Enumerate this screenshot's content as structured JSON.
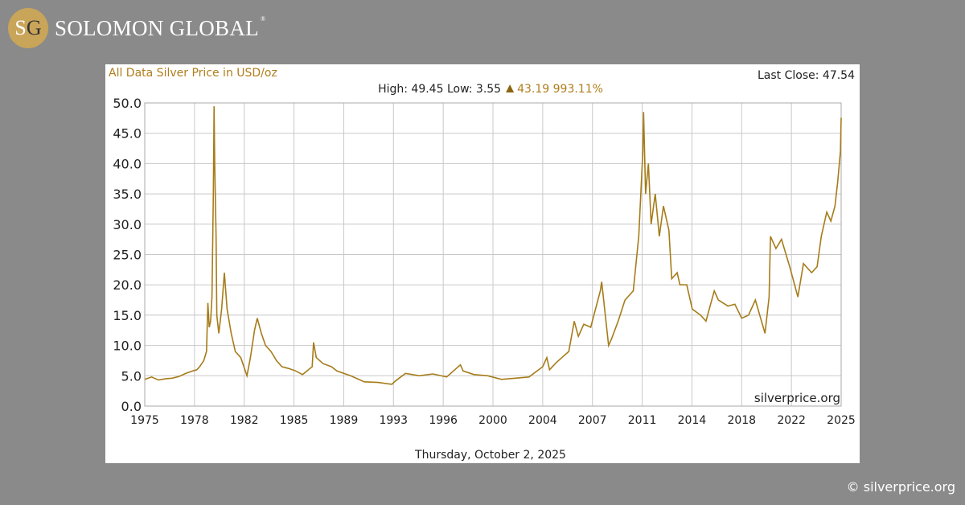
{
  "brand": {
    "monogram_s": "S",
    "monogram_g": "G",
    "name": "SOLOMON GLOBAL",
    "registered": "®"
  },
  "credit": "© silverprice.org",
  "colors": {
    "line": "#a67c1a",
    "title": "#b07d1a",
    "background": "#8a8a8a",
    "grid": "#c8c8c8"
  },
  "chart_data": {
    "type": "line",
    "title": "All Data Silver Price in USD/oz",
    "last_close": "Last Close: 47.54",
    "stats_prefix": "High: 49.45 Low: 3.55",
    "change_icon": "triangle-up",
    "change": "43.19 993.11%",
    "watermark": "silverprice.org",
    "xlabel": "Thursday, October 2, 2025",
    "ylabel": "",
    "xlim": [
      1975,
      2025.75
    ],
    "ylim": [
      0,
      50
    ],
    "grid": true,
    "yticks": [
      "0.0",
      "5.0",
      "10.0",
      "15.0",
      "20.0",
      "25.0",
      "30.0",
      "35.0",
      "40.0",
      "45.0",
      "50.0"
    ],
    "xticks": [
      "1975",
      "1978",
      "1982",
      "1985",
      "1989",
      "1993",
      "1996",
      "2000",
      "2004",
      "2007",
      "2011",
      "2014",
      "2018",
      "2022",
      "2025"
    ],
    "series": [
      {
        "x": [
          1975,
          1975.5,
          1976,
          1976.5,
          1977,
          1977.5,
          1978,
          1978.5,
          1978.8,
          1979,
          1979.3,
          1979.5,
          1979.6,
          1979.7,
          1979.8,
          1979.9,
          1980.0,
          1980.05,
          1980.1,
          1980.2,
          1980.25,
          1980.4,
          1980.6,
          1980.8,
          1981,
          1981.3,
          1981.6,
          1982,
          1982.45,
          1982.7,
          1983,
          1983.2,
          1983.5,
          1983.8,
          1984.2,
          1984.6,
          1985,
          1985.5,
          1986,
          1986.5,
          1987.2,
          1987.3,
          1987.5,
          1988,
          1988.6,
          1989,
          1990,
          1991,
          1992,
          1993.0,
          1993.3,
          1994,
          1995,
          1996,
          1997,
          1998.0,
          1998.2,
          1999,
          2000,
          2001,
          2002,
          2003,
          2004,
          2004.3,
          2004.5,
          2005,
          2005.9,
          2006.3,
          2006.6,
          2007,
          2007.5,
          2008.2,
          2008.3,
          2008.8,
          2009,
          2009.5,
          2010,
          2010.6,
          2011,
          2011.3,
          2011.35,
          2011.5,
          2011.7,
          2011.9,
          2012.2,
          2012.5,
          2012.8,
          2013.2,
          2013.4,
          2013.8,
          2014,
          2014.5,
          2014.9,
          2015.5,
          2015.9,
          2016.5,
          2016.8,
          2017.5,
          2018,
          2018.5,
          2019,
          2019.5,
          2020.2,
          2020.5,
          2020.6,
          2021,
          2021.4,
          2022,
          2022.6,
          2023,
          2023.6,
          2024,
          2024.3,
          2024.7,
          2025,
          2025.3,
          2025.5,
          2025.7,
          2025.75
        ],
        "y": [
          4.4,
          4.8,
          4.3,
          4.5,
          4.6,
          4.9,
          5.4,
          5.8,
          6.0,
          6.5,
          7.5,
          9,
          17,
          13,
          14,
          18,
          35,
          49.45,
          40,
          28,
          15,
          12,
          16,
          22,
          16,
          12,
          9,
          8,
          5.0,
          8,
          12.5,
          14.5,
          12,
          10,
          9,
          7.5,
          6.5,
          6.2,
          5.8,
          5.2,
          6.5,
          10.5,
          8,
          7,
          6.5,
          5.8,
          5.0,
          4.0,
          3.9,
          3.6,
          4.2,
          5.4,
          5.0,
          5.3,
          4.8,
          6.8,
          5.8,
          5.2,
          5.0,
          4.4,
          4.6,
          4.8,
          6.5,
          8,
          6,
          7.2,
          9,
          14,
          11.5,
          13.5,
          13,
          19,
          20.5,
          10,
          11,
          14,
          17.5,
          19,
          28,
          42,
          48.5,
          35,
          40,
          30,
          35,
          28,
          33,
          29,
          21,
          22,
          20,
          20,
          16,
          15,
          14,
          19,
          17.5,
          16.5,
          16.8,
          14.5,
          15,
          17.5,
          12,
          18,
          28,
          26,
          27.5,
          23,
          18,
          23.5,
          22,
          23,
          28,
          32,
          30.5,
          33,
          37,
          42,
          47.54
        ]
      }
    ]
  }
}
